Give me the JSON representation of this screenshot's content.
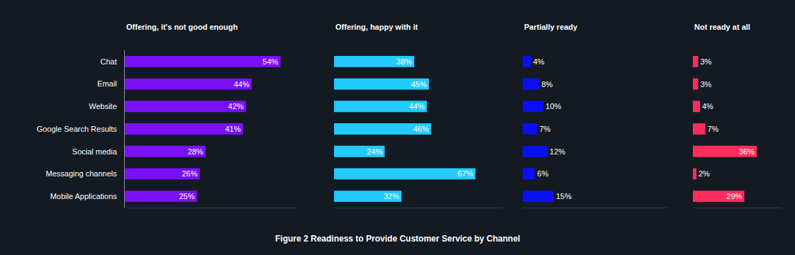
{
  "title": "Figure 2 Readiness to Provide Customer Service by Channel",
  "chart_data": [
    {
      "type": "bar",
      "title": "Offering, it's not good enough",
      "orientation": "horizontal",
      "categories": [
        "Chat",
        "Email",
        "Website",
        "Google Search Results",
        "Social media",
        "Messaging channels",
        "Mobile Applications"
      ],
      "values": [
        54,
        44,
        42,
        41,
        28,
        26,
        25
      ],
      "value_labels": [
        "54%",
        "44%",
        "42%",
        "41%",
        "28%",
        "26%",
        "25%"
      ],
      "color": "#7a10f7",
      "xlim": [
        0,
        60
      ],
      "data_labels": true,
      "tick_labels": "y",
      "grid": false
    },
    {
      "type": "bar",
      "title": "Offering, happy with it",
      "orientation": "horizontal",
      "categories": [
        "Chat",
        "Email",
        "Website",
        "Google Search Results",
        "Social media",
        "Messaging channels",
        "Mobile Applications"
      ],
      "values": [
        38,
        45,
        44,
        46,
        24,
        67,
        32
      ],
      "value_labels": [
        "38%",
        "45%",
        "44%",
        "46%",
        "24%",
        "67%",
        "32%"
      ],
      "color": "#22cbff",
      "xlim": [
        0,
        80
      ],
      "data_labels": true,
      "tick_labels": false,
      "grid": false
    },
    {
      "type": "bar",
      "title": "Partially ready",
      "orientation": "horizontal",
      "categories": [
        "Chat",
        "Email",
        "Website",
        "Google Search Results",
        "Social media",
        "Messaging channels",
        "Mobile Applications"
      ],
      "values": [
        4,
        8,
        10,
        7,
        12,
        6,
        15
      ],
      "value_labels": [
        "4%",
        "8%",
        "10%",
        "7%",
        "12%",
        "6%",
        "15%"
      ],
      "color": "#0a0ff2",
      "xlim": [
        0,
        70
      ],
      "data_labels": true,
      "tick_labels": false,
      "grid": false
    },
    {
      "type": "bar",
      "title": "Not ready at all",
      "orientation": "horizontal",
      "categories": [
        "Chat",
        "Email",
        "Website",
        "Google Search Results",
        "Social media",
        "Messaging channels",
        "Mobile Applications"
      ],
      "values": [
        3,
        3,
        4,
        7,
        36,
        2,
        29
      ],
      "value_labels": [
        "3%",
        "3%",
        "4%",
        "7%",
        "36%",
        "2%",
        "29%"
      ],
      "color": "#ff2d5e",
      "xlim": [
        0,
        50
      ],
      "data_labels": true,
      "tick_labels": false,
      "grid": false
    }
  ]
}
